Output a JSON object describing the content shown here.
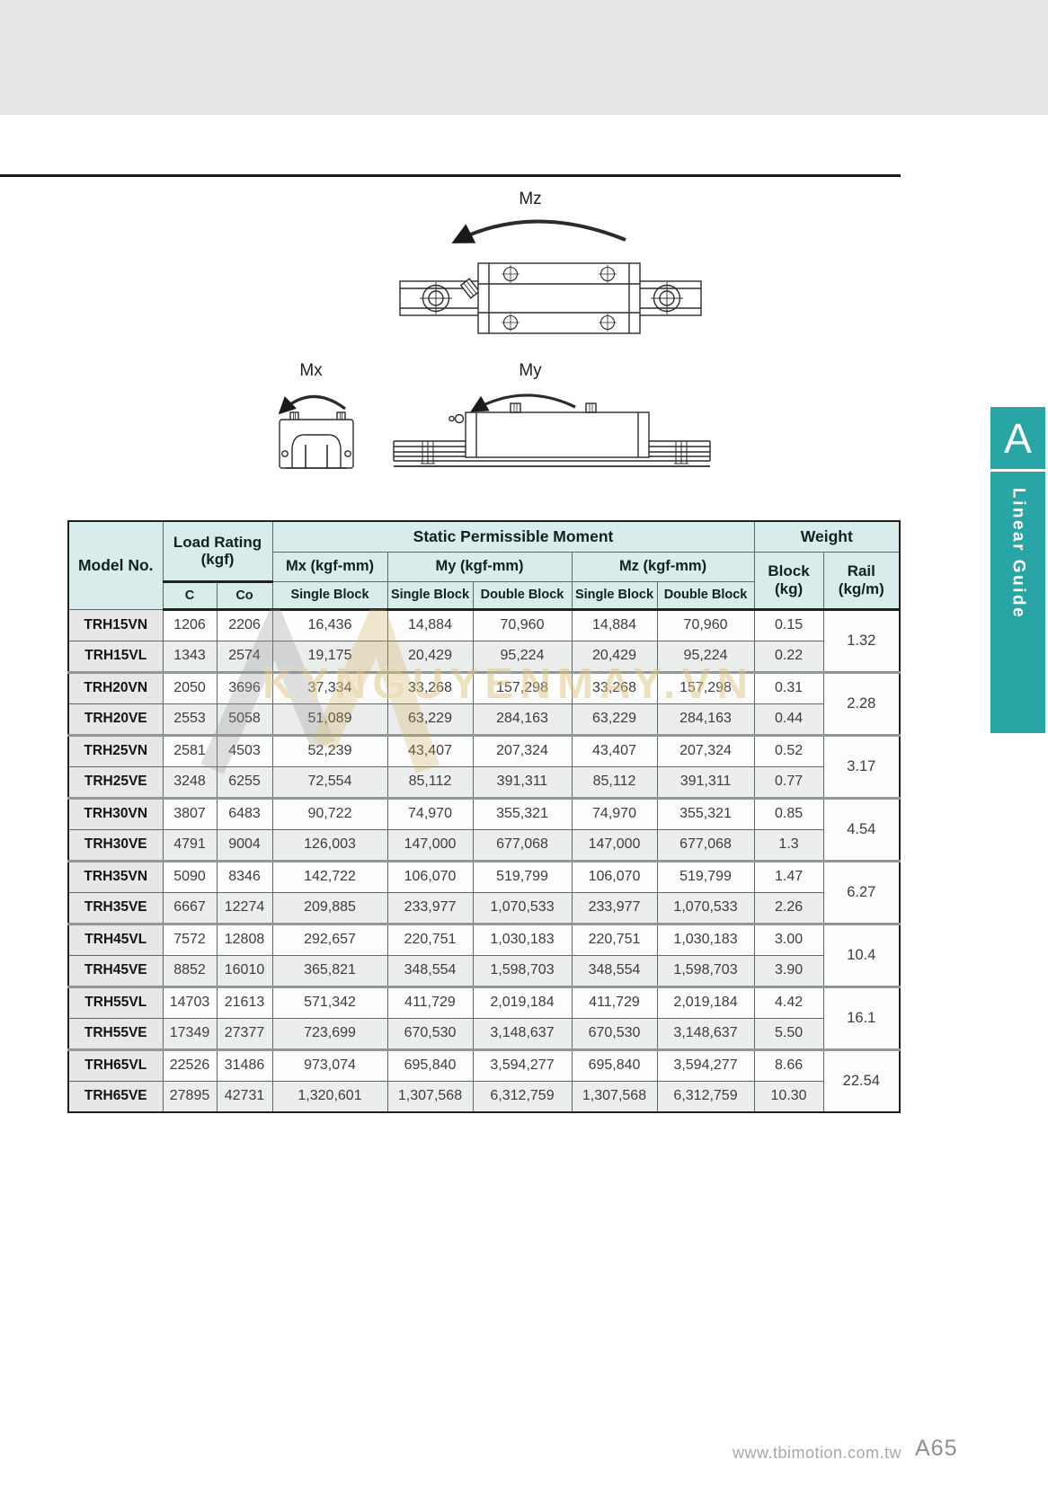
{
  "side_tab": {
    "letter": "A",
    "label": "Linear Guide"
  },
  "diagram_labels": {
    "mz": "Mz",
    "mx": "Mx",
    "my": "My"
  },
  "watermark": {
    "text": "KYNGUYENMAY.VN"
  },
  "footer": {
    "website": "www.tbimotion.com.tw",
    "page_number": "A65"
  },
  "table": {
    "header": {
      "model_no": "Model No.",
      "load_rating_line1": "Load Rating",
      "load_rating_line2": "(kgf)",
      "static_moment": "Static Permissible Moment",
      "weight": "Weight",
      "mx": "Mx (kgf-mm)",
      "my": "My (kgf-mm)",
      "mz": "Mz (kgf-mm)",
      "block_line1": "Block",
      "block_line2": "(kg)",
      "rail_line1": "Rail",
      "rail_line2": "(kg/m)",
      "c": "C",
      "co": "Co",
      "single_block": "Single Block",
      "double_block": "Double Block"
    },
    "rows": [
      [
        "TRH15VN",
        "1206",
        "2206",
        "16,436",
        "14,884",
        "70,960",
        "14,884",
        "70,960",
        "0.15"
      ],
      [
        "TRH15VL",
        "1343",
        "2574",
        "19,175",
        "20,429",
        "95,224",
        "20,429",
        "95,224",
        "0.22"
      ],
      [
        "TRH20VN",
        "2050",
        "3696",
        "37,334",
        "33,268",
        "157,298",
        "33,268",
        "157,298",
        "0.31"
      ],
      [
        "TRH20VE",
        "2553",
        "5058",
        "51,089",
        "63,229",
        "284,163",
        "63,229",
        "284,163",
        "0.44"
      ],
      [
        "TRH25VN",
        "2581",
        "4503",
        "52,239",
        "43,407",
        "207,324",
        "43,407",
        "207,324",
        "0.52"
      ],
      [
        "TRH25VE",
        "3248",
        "6255",
        "72,554",
        "85,112",
        "391,311",
        "85,112",
        "391,311",
        "0.77"
      ],
      [
        "TRH30VN",
        "3807",
        "6483",
        "90,722",
        "74,970",
        "355,321",
        "74,970",
        "355,321",
        "0.85"
      ],
      [
        "TRH30VE",
        "4791",
        "9004",
        "126,003",
        "147,000",
        "677,068",
        "147,000",
        "677,068",
        "1.3"
      ],
      [
        "TRH35VN",
        "5090",
        "8346",
        "142,722",
        "106,070",
        "519,799",
        "106,070",
        "519,799",
        "1.47"
      ],
      [
        "TRH35VE",
        "6667",
        "12274",
        "209,885",
        "233,977",
        "1,070,533",
        "233,977",
        "1,070,533",
        "2.26"
      ],
      [
        "TRH45VL",
        "7572",
        "12808",
        "292,657",
        "220,751",
        "1,030,183",
        "220,751",
        "1,030,183",
        "3.00"
      ],
      [
        "TRH45VE",
        "8852",
        "16010",
        "365,821",
        "348,554",
        "1,598,703",
        "348,554",
        "1,598,703",
        "3.90"
      ],
      [
        "TRH55VL",
        "14703",
        "21613",
        "571,342",
        "411,729",
        "2,019,184",
        "411,729",
        "2,019,184",
        "4.42"
      ],
      [
        "TRH55VE",
        "17349",
        "27377",
        "723,699",
        "670,530",
        "3,148,637",
        "670,530",
        "3,148,637",
        "5.50"
      ],
      [
        "TRH65VL",
        "22526",
        "31486",
        "973,074",
        "695,840",
        "3,594,277",
        "695,840",
        "3,594,277",
        "8.66"
      ],
      [
        "TRH65VE",
        "27895",
        "42731",
        "1,320,601",
        "1,307,568",
        "6,312,759",
        "1,307,568",
        "6,312,759",
        "10.30"
      ]
    ],
    "rail_weights": [
      "1.32",
      "2.28",
      "3.17",
      "4.54",
      "6.27",
      "10.4",
      "16.1",
      "22.54"
    ],
    "colors": {
      "tab_teal": "#2aa5a5",
      "header_teal": "#d8ecec"
    }
  }
}
